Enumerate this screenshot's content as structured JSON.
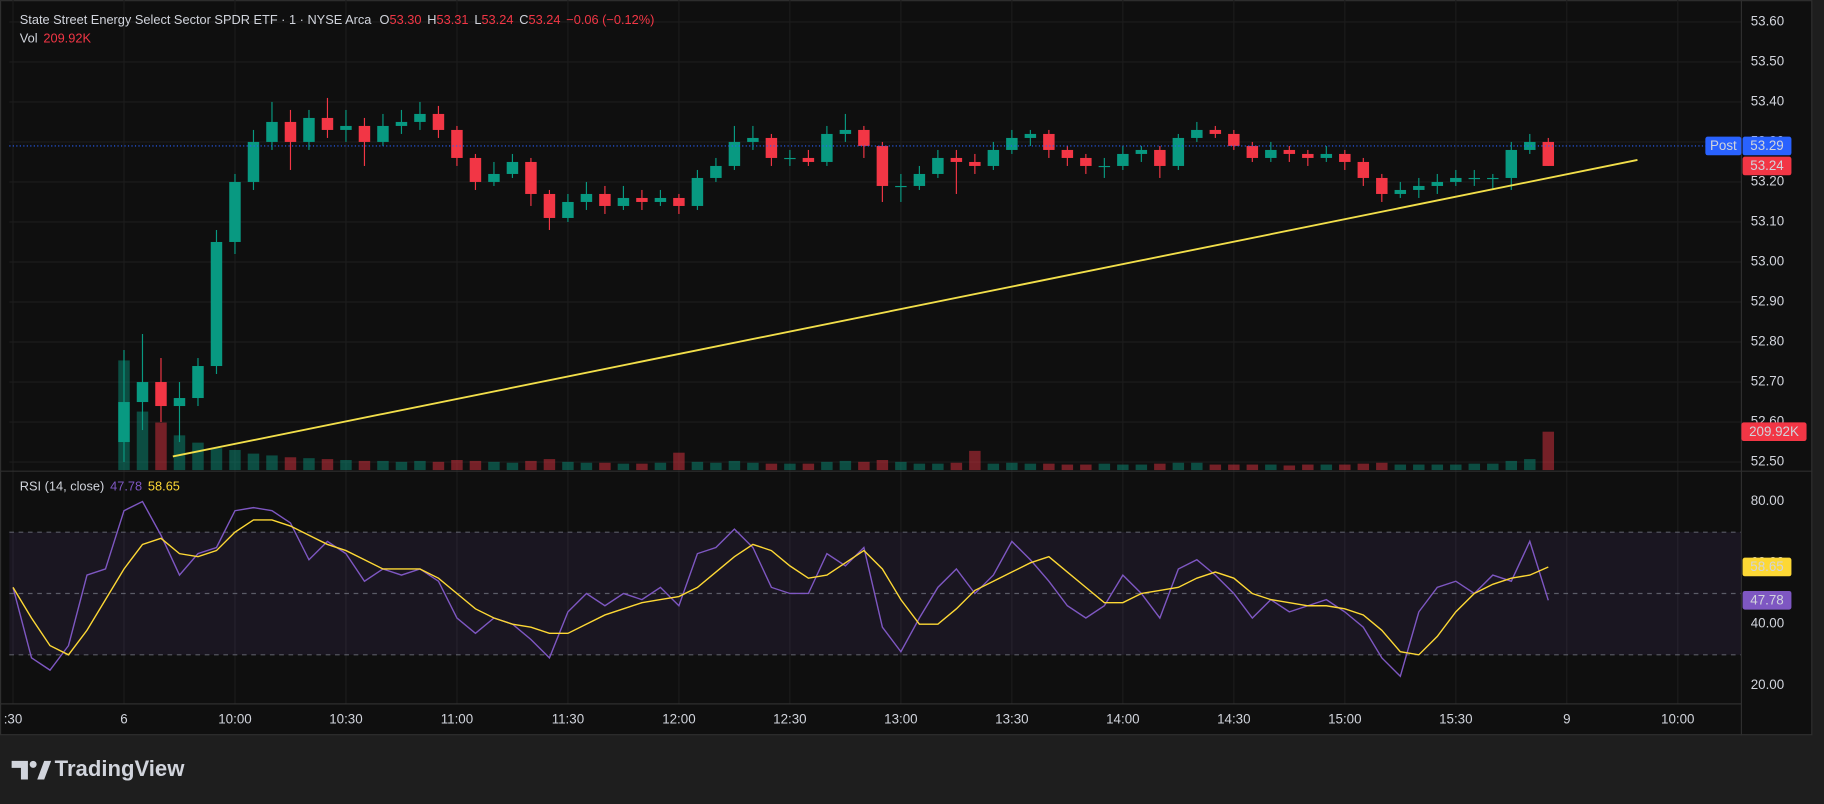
{
  "chart_data": [
    {
      "type": "candlestick",
      "title": "State Street Energy Select Sector SPDR ETF · 1 · NYSE Arca",
      "ohlc_legend": [
        {
          "label": "O",
          "value": "53.30"
        },
        {
          "label": "H",
          "value": "53.31"
        },
        {
          "label": "L",
          "value": "53.24"
        },
        {
          "label": "C",
          "value": "53.24"
        }
      ],
      "change": "−0.06 (−0.12%)",
      "volume_legend": {
        "label": "Vol",
        "value": "209.92K"
      },
      "up_color": "#089981",
      "down_color": "#f23645",
      "x": [
        0,
        5,
        10,
        15,
        20,
        25,
        30,
        35,
        40,
        45,
        50,
        55,
        60,
        65,
        70,
        75,
        80,
        85,
        90,
        95,
        100,
        105,
        110,
        115,
        120,
        125,
        130,
        135,
        140,
        145,
        150,
        155,
        160,
        165,
        170,
        175,
        180,
        185,
        190,
        195,
        200,
        205,
        210,
        215,
        220,
        225,
        230,
        235,
        240,
        245,
        250,
        255,
        260,
        265,
        270,
        275,
        280,
        285,
        290,
        295,
        300,
        305,
        310,
        315,
        320,
        325,
        330,
        335,
        340,
        345,
        350,
        355,
        360,
        365,
        370,
        375,
        380,
        385
      ],
      "ohlc": [
        [
          52.55,
          52.78,
          52.5,
          52.65
        ],
        [
          52.65,
          52.82,
          52.58,
          52.7
        ],
        [
          52.7,
          52.76,
          52.6,
          52.64
        ],
        [
          52.64,
          52.7,
          52.55,
          52.66
        ],
        [
          52.66,
          52.76,
          52.64,
          52.74
        ],
        [
          52.74,
          53.08,
          52.72,
          53.05
        ],
        [
          53.05,
          53.22,
          53.02,
          53.2
        ],
        [
          53.2,
          53.33,
          53.18,
          53.3
        ],
        [
          53.3,
          53.4,
          53.28,
          53.35
        ],
        [
          53.35,
          53.38,
          53.23,
          53.3
        ],
        [
          53.3,
          53.38,
          53.28,
          53.36
        ],
        [
          53.36,
          53.41,
          53.31,
          53.33
        ],
        [
          53.33,
          53.38,
          53.3,
          53.34
        ],
        [
          53.34,
          53.36,
          53.24,
          53.3
        ],
        [
          53.3,
          53.37,
          53.29,
          53.34
        ],
        [
          53.34,
          53.38,
          53.32,
          53.35
        ],
        [
          53.35,
          53.4,
          53.33,
          53.37
        ],
        [
          53.37,
          53.39,
          53.31,
          53.33
        ],
        [
          53.33,
          53.34,
          53.24,
          53.26
        ],
        [
          53.26,
          53.27,
          53.18,
          53.2
        ],
        [
          53.2,
          53.25,
          53.19,
          53.22
        ],
        [
          53.22,
          53.27,
          53.21,
          53.25
        ],
        [
          53.25,
          53.26,
          53.14,
          53.17
        ],
        [
          53.17,
          53.18,
          53.08,
          53.11
        ],
        [
          53.11,
          53.17,
          53.1,
          53.15
        ],
        [
          53.15,
          53.2,
          53.13,
          53.17
        ],
        [
          53.17,
          53.19,
          53.12,
          53.14
        ],
        [
          53.14,
          53.19,
          53.13,
          53.16
        ],
        [
          53.16,
          53.18,
          53.13,
          53.15
        ],
        [
          53.15,
          53.18,
          53.14,
          53.16
        ],
        [
          53.16,
          53.17,
          53.12,
          53.14
        ],
        [
          53.14,
          53.23,
          53.13,
          53.21
        ],
        [
          53.21,
          53.26,
          53.2,
          53.24
        ],
        [
          53.24,
          53.34,
          53.23,
          53.3
        ],
        [
          53.3,
          53.34,
          53.28,
          53.31
        ],
        [
          53.31,
          53.32,
          53.24,
          53.26
        ],
        [
          53.26,
          53.28,
          53.24,
          53.26
        ],
        [
          53.26,
          53.28,
          53.24,
          53.25
        ],
        [
          53.25,
          53.34,
          53.24,
          53.32
        ],
        [
          53.32,
          53.37,
          53.3,
          53.33
        ],
        [
          53.33,
          53.34,
          53.26,
          53.29
        ],
        [
          53.29,
          53.3,
          53.15,
          53.19
        ],
        [
          53.19,
          53.22,
          53.15,
          53.19
        ],
        [
          53.19,
          53.24,
          53.18,
          53.22
        ],
        [
          53.22,
          53.28,
          53.21,
          53.26
        ],
        [
          53.26,
          53.28,
          53.17,
          53.25
        ],
        [
          53.25,
          53.27,
          53.22,
          53.24
        ],
        [
          53.24,
          53.3,
          53.23,
          53.28
        ],
        [
          53.28,
          53.33,
          53.27,
          53.31
        ],
        [
          53.31,
          53.33,
          53.29,
          53.32
        ],
        [
          53.32,
          53.33,
          53.26,
          53.28
        ],
        [
          53.28,
          53.29,
          53.24,
          53.26
        ],
        [
          53.26,
          53.27,
          53.22,
          53.24
        ],
        [
          53.24,
          53.26,
          53.21,
          53.24
        ],
        [
          53.24,
          53.29,
          53.23,
          53.27
        ],
        [
          53.27,
          53.29,
          53.25,
          53.28
        ],
        [
          53.28,
          53.29,
          53.21,
          53.24
        ],
        [
          53.24,
          53.32,
          53.23,
          53.31
        ],
        [
          53.31,
          53.35,
          53.3,
          53.33
        ],
        [
          53.33,
          53.34,
          53.31,
          53.32
        ],
        [
          53.32,
          53.33,
          53.28,
          53.29
        ],
        [
          53.29,
          53.3,
          53.25,
          53.26
        ],
        [
          53.26,
          53.3,
          53.25,
          53.28
        ],
        [
          53.28,
          53.29,
          53.25,
          53.27
        ],
        [
          53.27,
          53.28,
          53.24,
          53.26
        ],
        [
          53.26,
          53.29,
          53.25,
          53.27
        ],
        [
          53.27,
          53.28,
          53.23,
          53.25
        ],
        [
          53.25,
          53.26,
          53.19,
          53.21
        ],
        [
          53.21,
          53.22,
          53.15,
          53.17
        ],
        [
          53.17,
          53.2,
          53.16,
          53.18
        ],
        [
          53.18,
          53.21,
          53.16,
          53.19
        ],
        [
          53.19,
          53.22,
          53.17,
          53.2
        ],
        [
          53.2,
          53.23,
          53.19,
          53.21
        ],
        [
          53.21,
          53.23,
          53.19,
          53.21
        ],
        [
          53.21,
          53.22,
          53.18,
          53.21
        ],
        [
          53.21,
          53.3,
          53.18,
          53.28
        ],
        [
          53.28,
          53.32,
          53.27,
          53.3
        ],
        [
          53.3,
          53.31,
          53.24,
          53.24
        ]
      ],
      "volume": [
        600000,
        320000,
        260000,
        190000,
        150000,
        120000,
        110000,
        90000,
        80000,
        70000,
        65000,
        60000,
        55000,
        50000,
        50000,
        45000,
        50000,
        45000,
        55000,
        50000,
        45000,
        40000,
        50000,
        60000,
        45000,
        40000,
        40000,
        35000,
        35000,
        40000,
        95000,
        45000,
        40000,
        50000,
        40000,
        35000,
        35000,
        35000,
        45000,
        50000,
        45000,
        55000,
        45000,
        35000,
        35000,
        40000,
        105000,
        35000,
        40000,
        35000,
        35000,
        30000,
        30000,
        35000,
        30000,
        30000,
        35000,
        40000,
        40000,
        30000,
        30000,
        30000,
        30000,
        25000,
        30000,
        30000,
        30000,
        35000,
        40000,
        30000,
        30000,
        30000,
        30000,
        35000,
        35000,
        50000,
        60000,
        209920
      ],
      "volume_ylim": [
        0,
        2540000
      ],
      "xlim": [
        -31,
        437.2
      ],
      "xticks": [
        {
          "value": -30,
          "label": ":30"
        },
        {
          "value": 0,
          "label": "6"
        },
        {
          "value": 30,
          "label": "10:00"
        },
        {
          "value": 60,
          "label": "10:30"
        },
        {
          "value": 90,
          "label": "11:00"
        },
        {
          "value": 120,
          "label": "11:30"
        },
        {
          "value": 150,
          "label": "12:00"
        },
        {
          "value": 180,
          "label": "12:30"
        },
        {
          "value": 210,
          "label": "13:00"
        },
        {
          "value": 240,
          "label": "13:30"
        },
        {
          "value": 270,
          "label": "14:00"
        },
        {
          "value": 300,
          "label": "14:30"
        },
        {
          "value": 330,
          "label": "15:00"
        },
        {
          "value": 360,
          "label": "15:30"
        },
        {
          "value": 390,
          "label": "9"
        },
        {
          "value": 420,
          "label": "10:00"
        }
      ],
      "ylim": [
        52.48,
        53.64
      ],
      "yticks": [
        {
          "value": 52.5,
          "label": "52.50"
        },
        {
          "value": 52.6,
          "label": "52.60"
        },
        {
          "value": 52.7,
          "label": "52.70"
        },
        {
          "value": 52.8,
          "label": "52.80"
        },
        {
          "value": 52.9,
          "label": "52.90"
        },
        {
          "value": 53.0,
          "label": "53.00"
        },
        {
          "value": 53.1,
          "label": "53.10"
        },
        {
          "value": 53.2,
          "label": "53.20"
        },
        {
          "value": 53.3,
          "label": "53.30"
        },
        {
          "value": 53.4,
          "label": "53.40"
        },
        {
          "value": 53.5,
          "label": "53.50"
        },
        {
          "value": 53.6,
          "label": "53.60"
        }
      ],
      "grid": true,
      "post_price": {
        "label": "Post",
        "value": 53.29,
        "color": "#2962ff"
      },
      "last_price": 53.24,
      "trendline": {
        "x": [
          13.2,
          409.1
        ],
        "y": [
          52.514,
          53.255
        ],
        "color": "#f2df4a"
      }
    },
    {
      "type": "line",
      "title": "RSI (14, close)",
      "x": [
        -30,
        -25,
        -20,
        -15,
        -10,
        -5,
        0,
        5,
        10,
        15,
        20,
        25,
        30,
        35,
        40,
        45,
        50,
        55,
        60,
        65,
        70,
        75,
        80,
        85,
        90,
        95,
        100,
        105,
        110,
        115,
        120,
        125,
        130,
        135,
        140,
        145,
        150,
        155,
        160,
        165,
        170,
        175,
        180,
        185,
        190,
        195,
        200,
        205,
        210,
        215,
        220,
        225,
        230,
        235,
        240,
        245,
        250,
        255,
        260,
        265,
        270,
        275,
        280,
        285,
        290,
        295,
        300,
        305,
        310,
        315,
        320,
        325,
        330,
        335,
        340,
        345,
        350,
        355,
        360,
        365,
        370,
        375,
        380,
        385
      ],
      "series": [
        {
          "color": "#7e57c2",
          "values": [
            52,
            29,
            25,
            33,
            56,
            58,
            77,
            80,
            69,
            56,
            63,
            65,
            77,
            78,
            77,
            73,
            61,
            67,
            63,
            54,
            58,
            56,
            58,
            54,
            42,
            37,
            42,
            40,
            35,
            29,
            44,
            50,
            46,
            50,
            48,
            52,
            46,
            63,
            65,
            71,
            65,
            52,
            50,
            50,
            63,
            59,
            65,
            39,
            31,
            42,
            52,
            58,
            50,
            56,
            67,
            61,
            54,
            46,
            42,
            46,
            56,
            50,
            42,
            58,
            61,
            56,
            50,
            42,
            48,
            44,
            46,
            48,
            44,
            39,
            29,
            23,
            44,
            52,
            54,
            50,
            56,
            54,
            67,
            47.78
          ]
        },
        {
          "color": "#fdd835",
          "values": [
            52,
            42,
            33,
            30,
            38,
            48,
            58,
            66,
            68,
            63,
            62,
            64,
            70,
            74,
            74,
            72,
            69,
            66,
            64,
            61,
            58,
            58,
            58,
            55,
            50,
            45,
            42,
            40,
            39,
            37,
            37,
            40,
            43,
            45,
            47,
            48,
            49,
            52,
            57,
            62,
            66,
            64,
            59,
            55,
            56,
            60,
            64,
            58,
            48,
            40,
            40,
            45,
            51,
            54,
            57,
            60,
            62,
            57,
            52,
            47,
            47,
            50,
            51,
            52,
            55,
            57,
            55,
            50,
            48,
            47,
            46,
            46,
            45,
            43,
            38,
            31,
            30,
            36,
            44,
            50,
            53,
            55,
            56,
            58.65
          ]
        }
      ],
      "ylim": [
        14,
        89.5
      ],
      "yticks": [
        {
          "value": 20,
          "label": "20.00"
        },
        {
          "value": 40,
          "label": "40.00"
        },
        {
          "value": 60,
          "label": "60.00"
        },
        {
          "value": 80,
          "label": "80.00"
        }
      ],
      "levels": [
        70,
        50,
        30
      ],
      "band_color": "#7e57c2"
    }
  ],
  "footer": {
    "brand": "TradingView"
  }
}
